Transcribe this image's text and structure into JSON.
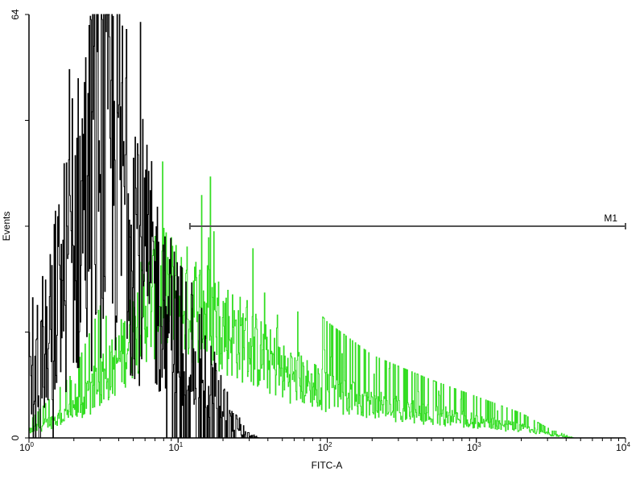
{
  "chart_data": {
    "type": "histogram",
    "xlabel": "FITC-A",
    "ylabel": "Events",
    "xscale": "log",
    "xlim": [
      1,
      10000
    ],
    "ylim": [
      0,
      64
    ],
    "x_tick_labels": [
      {
        "base": "10",
        "exp": "0"
      },
      {
        "base": "10",
        "exp": "1"
      },
      {
        "base": "10",
        "exp": "2"
      },
      {
        "base": "10",
        "exp": "3"
      },
      {
        "base": "10",
        "exp": "4"
      }
    ],
    "y_tick_labels": [
      "0",
      "64"
    ],
    "y_ticks": [
      0,
      16,
      32,
      48,
      64
    ],
    "grid": false,
    "series": [
      {
        "color": "#33dd22",
        "approx_envelope": [
          [
            1,
            1
          ],
          [
            2,
            4
          ],
          [
            3,
            8
          ],
          [
            4,
            12
          ],
          [
            5,
            16
          ],
          [
            6,
            20
          ],
          [
            8,
            22
          ],
          [
            10,
            21
          ],
          [
            15,
            19
          ],
          [
            20,
            17
          ],
          [
            30,
            14
          ],
          [
            50,
            10
          ],
          [
            100,
            7
          ],
          [
            200,
            5
          ],
          [
            500,
            3.5
          ],
          [
            1000,
            2.5
          ],
          [
            2000,
            1.5
          ],
          [
            3000,
            0.6
          ],
          [
            4500,
            0
          ]
        ]
      },
      {
        "color": "#000000",
        "approx_envelope": [
          [
            1,
            12
          ],
          [
            1.3,
            16
          ],
          [
            1.6,
            22
          ],
          [
            2,
            30
          ],
          [
            2.5,
            38
          ],
          [
            3,
            44
          ],
          [
            3.5,
            44
          ],
          [
            4,
            40
          ],
          [
            5,
            36
          ],
          [
            6,
            26
          ],
          [
            8,
            20
          ],
          [
            10,
            16
          ],
          [
            12,
            14
          ],
          [
            15,
            11
          ],
          [
            18,
            7
          ],
          [
            20,
            5
          ],
          [
            25,
            2
          ],
          [
            30,
            0.5
          ],
          [
            35,
            0
          ]
        ]
      }
    ],
    "marker": {
      "label": "M1",
      "x_start": 12,
      "x_end": 10000,
      "y": 32,
      "color": "#555555"
    }
  }
}
